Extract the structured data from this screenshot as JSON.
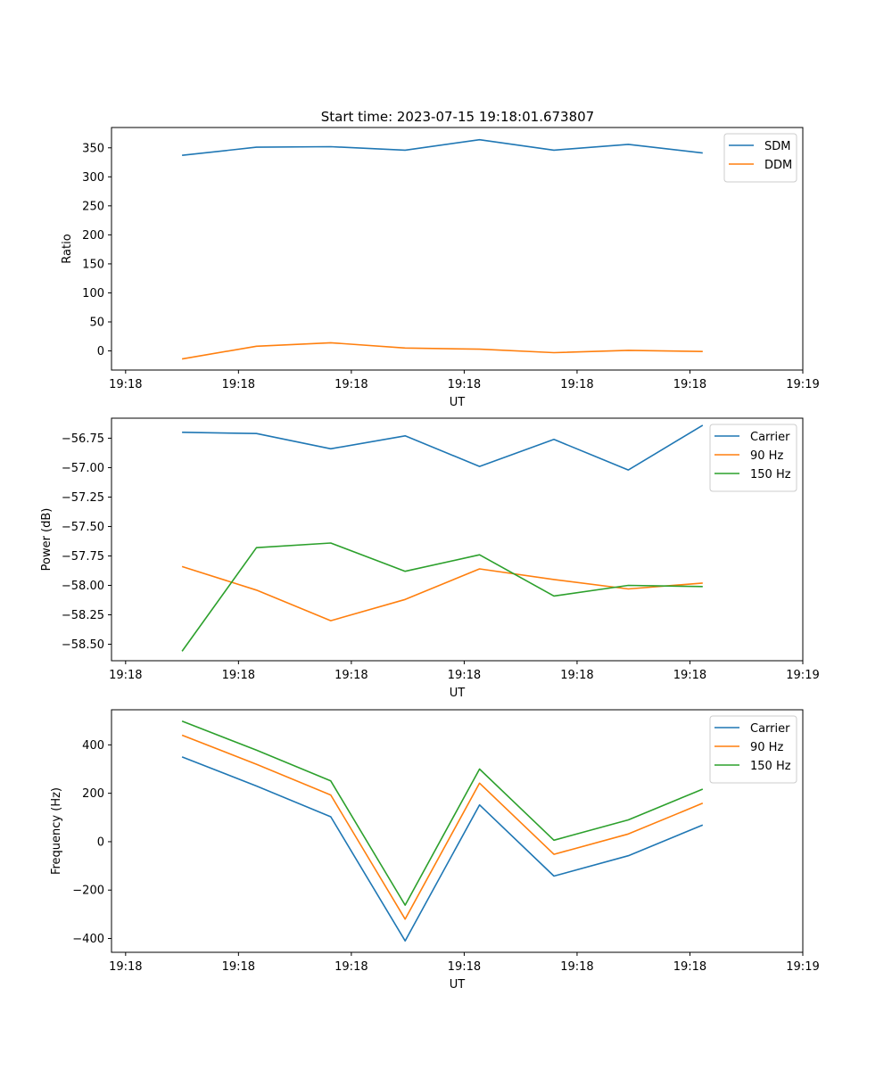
{
  "figure": {
    "title": "Start time: 2023-07-15 19:18:01.673807"
  },
  "chart_data": [
    {
      "type": "line",
      "title": "Start time: 2023-07-15 19:18:01.673807",
      "xlabel": "UT",
      "ylabel": "Ratio",
      "x": [
        0.5,
        1.159,
        1.818,
        2.477,
        3.136,
        3.795,
        4.454,
        5.113
      ],
      "xlim": [
        -0.125,
        6.0
      ],
      "xticks": [
        0,
        1,
        2,
        3,
        4,
        5,
        6
      ],
      "xtick_labels": [
        "19:18",
        "19:18",
        "19:18",
        "19:18",
        "19:18",
        "19:18",
        "19:19"
      ],
      "ylim": [
        -33,
        385
      ],
      "yticks": [
        0,
        50,
        100,
        150,
        200,
        250,
        300,
        350
      ],
      "ytick_labels": [
        "0",
        "50",
        "100",
        "150",
        "200",
        "250",
        "300",
        "350"
      ],
      "legend_position": "top-right",
      "grid": false,
      "series": [
        {
          "name": "SDM",
          "color": "#1f77b4",
          "values": [
            337,
            351,
            352,
            346,
            364,
            346,
            356,
            341
          ]
        },
        {
          "name": "DDM",
          "color": "#ff7f0e",
          "values": [
            -14,
            8,
            14,
            5,
            3,
            -3,
            1,
            -1
          ]
        }
      ]
    },
    {
      "type": "line",
      "title": "",
      "xlabel": "UT",
      "ylabel": "Power (dB)",
      "x": [
        0.5,
        1.159,
        1.818,
        2.477,
        3.136,
        3.795,
        4.454,
        5.113
      ],
      "xlim": [
        -0.125,
        6.0
      ],
      "xticks": [
        0,
        1,
        2,
        3,
        4,
        5,
        6
      ],
      "xtick_labels": [
        "19:18",
        "19:18",
        "19:18",
        "19:18",
        "19:18",
        "19:18",
        "19:19"
      ],
      "ylim": [
        -58.64,
        -56.58
      ],
      "yticks": [
        -58.5,
        -58.25,
        -58.0,
        -57.75,
        -57.5,
        -57.25,
        -57.0,
        -56.75
      ],
      "ytick_labels": [
        "−58.50",
        "−58.25",
        "−58.00",
        "−57.75",
        "−57.50",
        "−57.25",
        "−57.00",
        "−56.75"
      ],
      "legend_position": "top-right",
      "grid": false,
      "series": [
        {
          "name": "Carrier",
          "color": "#1f77b4",
          "values": [
            -56.7,
            -56.71,
            -56.84,
            -56.73,
            -56.99,
            -56.76,
            -57.02,
            -56.64
          ]
        },
        {
          "name": "90 Hz",
          "color": "#ff7f0e",
          "values": [
            -57.84,
            -58.04,
            -58.3,
            -58.12,
            -57.86,
            -57.95,
            -58.03,
            -57.98
          ]
        },
        {
          "name": "150 Hz",
          "color": "#2ca02c",
          "values": [
            -58.56,
            -57.68,
            -57.64,
            -57.88,
            -57.74,
            -58.09,
            -58.0,
            -58.01
          ]
        }
      ]
    },
    {
      "type": "line",
      "title": "",
      "xlabel": "UT",
      "ylabel": "Frequency (Hz)",
      "x": [
        0.5,
        1.159,
        1.818,
        2.477,
        3.136,
        3.795,
        4.454,
        5.113
      ],
      "xlim": [
        -0.125,
        6.0
      ],
      "xticks": [
        0,
        1,
        2,
        3,
        4,
        5,
        6
      ],
      "xtick_labels": [
        "19:18",
        "19:18",
        "19:18",
        "19:18",
        "19:18",
        "19:18",
        "19:19"
      ],
      "ylim": [
        -457,
        545
      ],
      "yticks": [
        -400,
        -200,
        0,
        200,
        400
      ],
      "ytick_labels": [
        "−400",
        "−200",
        "0",
        "200",
        "400"
      ],
      "legend_position": "top-right",
      "grid": false,
      "series": [
        {
          "name": "Carrier",
          "color": "#1f77b4",
          "values": [
            350,
            230,
            103,
            -410,
            152,
            -142,
            -58,
            69
          ]
        },
        {
          "name": "90 Hz",
          "color": "#ff7f0e",
          "values": [
            440,
            320,
            193,
            -320,
            242,
            -52,
            32,
            159
          ]
        },
        {
          "name": "150 Hz",
          "color": "#2ca02c",
          "values": [
            498,
            378,
            251,
            -262,
            300,
            6,
            90,
            217
          ]
        }
      ]
    }
  ]
}
